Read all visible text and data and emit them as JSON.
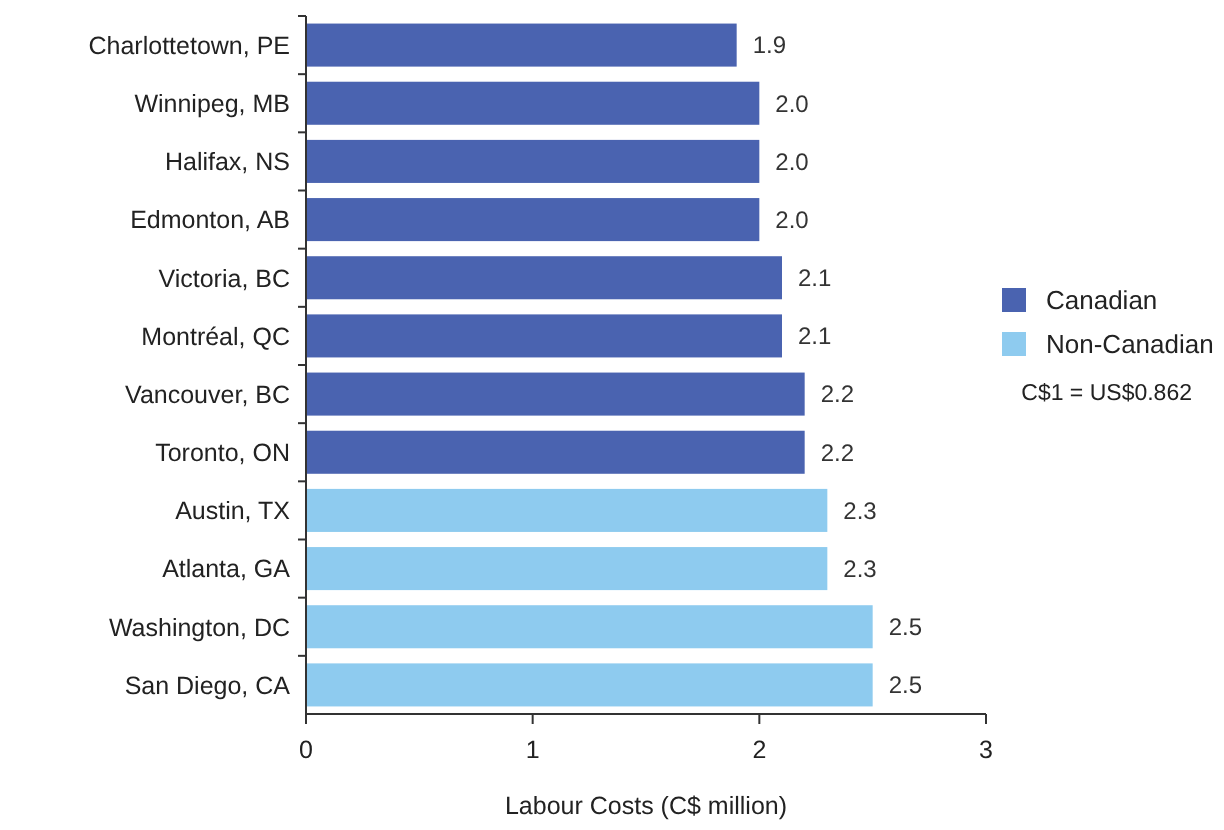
{
  "chart_data": {
    "type": "bar",
    "orientation": "horizontal",
    "xlabel": "Labour Costs (C$ million)",
    "categories": [
      "Charlottetown, PE",
      "Winnipeg, MB",
      "Halifax, NS",
      "Edmonton, AB",
      "Victoria, BC",
      "Montréal, QC",
      "Vancouver, BC",
      "Toronto, ON",
      "Austin, TX",
      "Atlanta, GA",
      "Washington, DC",
      "San Diego, CA"
    ],
    "series": [
      {
        "name": "Canadian",
        "color": "#4a63b0",
        "values": [
          1.9,
          2.0,
          2.0,
          2.0,
          2.1,
          2.1,
          2.2,
          2.2,
          null,
          null,
          null,
          null
        ],
        "value_labels": [
          "1.9",
          "2.0",
          "2.0",
          "2.0",
          "2.1",
          "2.1",
          "2.2",
          "2.2",
          null,
          null,
          null,
          null
        ]
      },
      {
        "name": "Non-Canadian",
        "color": "#8ecbef",
        "values": [
          null,
          null,
          null,
          null,
          null,
          null,
          null,
          null,
          2.3,
          2.3,
          2.5,
          2.5
        ],
        "value_labels": [
          null,
          null,
          null,
          null,
          null,
          null,
          null,
          null,
          "2.3",
          "2.3",
          "2.5",
          "2.5"
        ]
      }
    ],
    "xlim": [
      0,
      3
    ],
    "xticks": [
      0,
      1,
      2,
      3
    ],
    "legend": "right",
    "annotations": [
      "C$1 = US$0.862"
    ]
  }
}
